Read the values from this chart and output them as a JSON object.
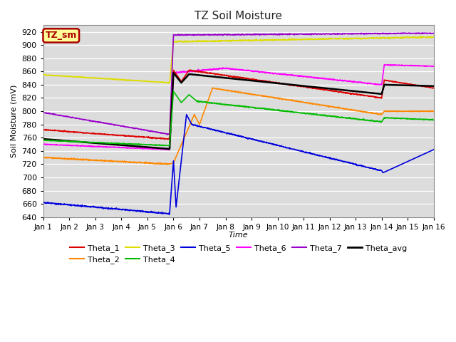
{
  "title": "TZ Soil Moisture",
  "xlabel": "Time",
  "ylabel": "Soil Moisture (mV)",
  "ylim": [
    640,
    930
  ],
  "xlim": [
    0,
    15
  ],
  "yticks": [
    640,
    660,
    680,
    700,
    720,
    740,
    760,
    780,
    800,
    820,
    840,
    860,
    880,
    900,
    920
  ],
  "xtick_labels": [
    "Jan 1",
    "Jan 2",
    "Jan 3",
    "Jan 4",
    "Jan 5",
    "Jan 6",
    "Jan 7",
    "Jan 8",
    "Jan 9",
    "Jan 10",
    "Jan 11",
    "Jan 12",
    "Jan 13",
    "Jan 14",
    "Jan 15",
    "Jan 16"
  ],
  "bg_color": "#dcdcdc",
  "legend_box_label": "TZ_sm",
  "legend_box_bg": "#ffff99",
  "legend_box_border": "#aa0000",
  "series": {
    "Theta_1": {
      "color": "#dd0000",
      "lw": 1.2
    },
    "Theta_2": {
      "color": "#ff8800",
      "lw": 1.2
    },
    "Theta_3": {
      "color": "#dddd00",
      "lw": 1.2
    },
    "Theta_4": {
      "color": "#00bb00",
      "lw": 1.2
    },
    "Theta_5": {
      "color": "#0000dd",
      "lw": 1.2
    },
    "Theta_6": {
      "color": "#ff00ff",
      "lw": 1.2
    },
    "Theta_7": {
      "color": "#9900cc",
      "lw": 1.2
    },
    "Theta_avg": {
      "color": "#000000",
      "lw": 1.8
    }
  }
}
